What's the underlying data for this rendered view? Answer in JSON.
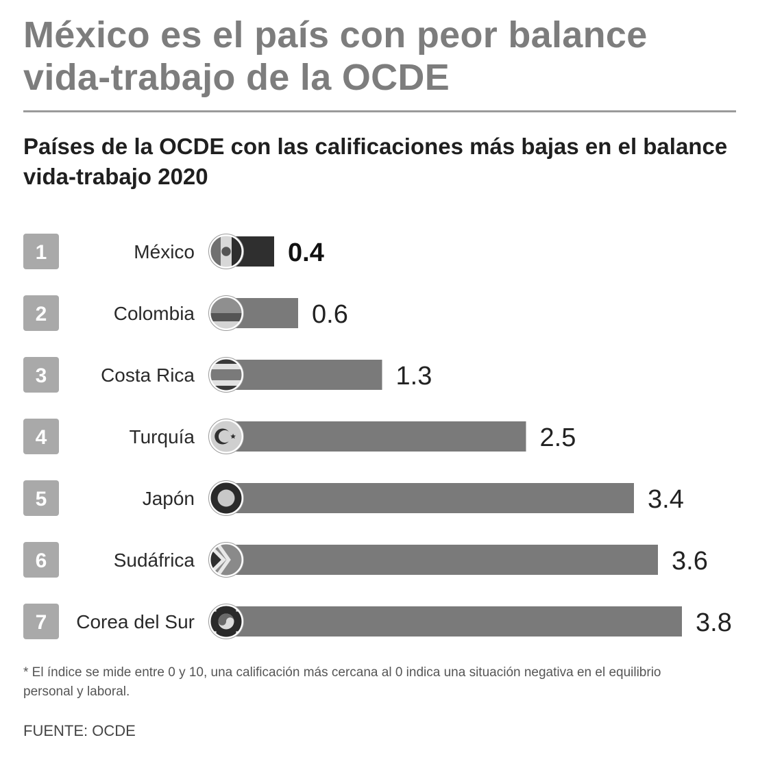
{
  "header": {
    "title": "México es el país con peor balance vida-trabajo de la OCDE",
    "subtitle": "Países de la OCDE con las calificaciones más bajas en el balance vida-trabajo 2020"
  },
  "chart_data": {
    "type": "bar",
    "orientation": "horizontal",
    "title": "Países de la OCDE con las calificaciones más bajas en el balance vida-trabajo 2020",
    "xlabel": "",
    "ylabel": "",
    "xlim": [
      0,
      3.8
    ],
    "grid": false,
    "ranks": [
      "1",
      "2",
      "3",
      "4",
      "5",
      "6",
      "7"
    ],
    "categories": [
      "México",
      "Colombia",
      "Costa Rica",
      "Turquía",
      "Japón",
      "Sudáfrica",
      "Corea del Sur"
    ],
    "values": [
      0.4,
      0.6,
      1.3,
      2.5,
      3.4,
      3.6,
      3.8
    ],
    "value_labels": [
      "0.4",
      "0.6",
      "1.3",
      "2.5",
      "3.4",
      "3.6",
      "3.8"
    ],
    "highlight_index": 0,
    "flags": [
      "mexico-flag-icon",
      "colombia-flag-icon",
      "costa-rica-flag-icon",
      "turkey-flag-icon",
      "japan-flag-icon",
      "south-africa-flag-icon",
      "south-korea-flag-icon"
    ],
    "colors": {
      "bar": "#7a7a7a",
      "highlight_bar": "#2f2f2f",
      "rank_box": "#a9a9a9",
      "rank_text": "#ffffff",
      "label": "#2a2a2a"
    }
  },
  "footnote": "* El índice se mide entre 0 y 10, una calificación más cercana al 0 indica una situación negativa en el equilibrio personal y laboral.",
  "source": "FUENTE: OCDE"
}
